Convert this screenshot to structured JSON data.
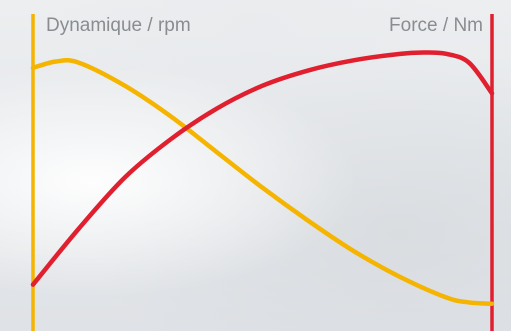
{
  "chart_data": {
    "type": "line",
    "title": "",
    "left_axis_label": "Dynamique / rpm",
    "right_axis_label": "Force / Nm",
    "grid": false,
    "xlim": [
      0,
      1
    ],
    "ylim": [
      0,
      1
    ],
    "series": [
      {
        "color": "#F5B400",
        "axis": "left",
        "x": [
          0,
          0.05,
          0.1,
          0.2,
          0.3,
          0.4,
          0.5,
          0.6,
          0.7,
          0.8,
          0.9,
          0.95,
          1.0
        ],
        "y": [
          0.93,
          0.955,
          0.95,
          0.86,
          0.74,
          0.6,
          0.46,
          0.33,
          0.21,
          0.11,
          0.03,
          0.01,
          0.005
        ]
      },
      {
        "color": "#E01F2F",
        "axis": "right",
        "x": [
          0,
          0.1,
          0.2,
          0.3,
          0.4,
          0.5,
          0.6,
          0.7,
          0.8,
          0.85,
          0.9,
          0.95,
          1.0
        ],
        "y": [
          0.08,
          0.3,
          0.5,
          0.65,
          0.77,
          0.86,
          0.92,
          0.96,
          0.985,
          0.99,
          0.985,
          0.95,
          0.83
        ]
      }
    ]
  }
}
